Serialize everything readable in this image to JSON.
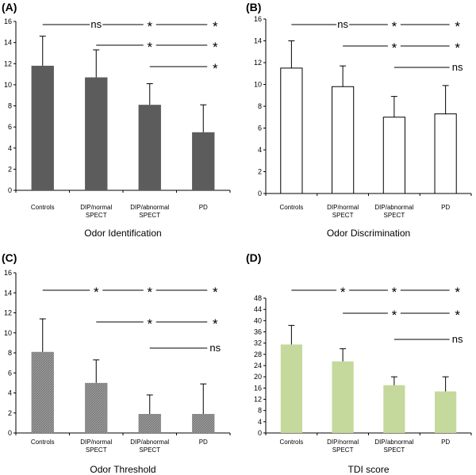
{
  "chart_data": [
    {
      "type": "bar",
      "panel_label": "(A)",
      "title": "Odor Identification",
      "xlabel": "Odor Identification",
      "ylabel": "",
      "ylim": [
        0,
        16
      ],
      "yticks": [
        "0",
        "2",
        "4",
        "6",
        "8",
        "10",
        "12",
        "14",
        "16"
      ],
      "categories": [
        "Controls",
        "DIP/normal SPECT",
        "DIP/abnormal SPECT",
        "PD"
      ],
      "values": [
        11.8,
        10.7,
        8.1,
        5.5
      ],
      "errors": [
        2.8,
        2.6,
        2.0,
        2.6
      ],
      "bar_style": "dark-gray",
      "bar_color": "#5c5c5c",
      "significance": [
        {
          "from": 0,
          "to": [
            1,
            2,
            3
          ],
          "labels": [
            "ns",
            "*",
            "*"
          ]
        },
        {
          "from": 1,
          "to": [
            2,
            3
          ],
          "labels": [
            "*",
            "*"
          ]
        },
        {
          "from": 2,
          "to": [
            3
          ],
          "labels": [
            "*"
          ]
        }
      ]
    },
    {
      "type": "bar",
      "panel_label": "(B)",
      "title": "Odor Discrimination",
      "xlabel": "Odor Discrimination",
      "ylabel": "",
      "ylim": [
        0,
        16
      ],
      "yticks": [
        "0",
        "2",
        "4",
        "6",
        "8",
        "10",
        "12",
        "14",
        "16"
      ],
      "categories": [
        "Controls",
        "DIP/normal SPECT",
        "DIP/abnormal SPECT",
        "PD"
      ],
      "values": [
        11.5,
        9.8,
        7.0,
        7.3
      ],
      "errors": [
        2.5,
        1.9,
        1.9,
        2.6
      ],
      "bar_style": "white",
      "bar_color": "#ffffff",
      "significance": [
        {
          "from": 0,
          "to": [
            1,
            2,
            3
          ],
          "labels": [
            "ns",
            "*",
            "*"
          ]
        },
        {
          "from": 1,
          "to": [
            2,
            3
          ],
          "labels": [
            "*",
            "*"
          ]
        },
        {
          "from": 2,
          "to": [
            3
          ],
          "labels": [
            "ns"
          ]
        }
      ]
    },
    {
      "type": "bar",
      "panel_label": "(C)",
      "title": "Odor Threshold",
      "xlabel": "Odor Threshold",
      "ylabel": "",
      "ylim": [
        0,
        16
      ],
      "yticks": [
        "0",
        "2",
        "4",
        "6",
        "8",
        "10",
        "12",
        "14",
        "16"
      ],
      "categories": [
        "Controls",
        "DIP/normal SPECT",
        "DIP/abnormal SPECT",
        "PD"
      ],
      "values": [
        8.1,
        5.0,
        1.9,
        1.9
      ],
      "errors": [
        3.3,
        2.3,
        1.9,
        3.0
      ],
      "bar_style": "gray-hatched",
      "bar_color": "#8a8a8a",
      "significance": [
        {
          "from": 0,
          "to": [
            1,
            2,
            3
          ],
          "labels": [
            "*",
            "*",
            "*"
          ]
        },
        {
          "from": 1,
          "to": [
            2,
            3
          ],
          "labels": [
            "*",
            "*"
          ]
        },
        {
          "from": 2,
          "to": [
            3
          ],
          "labels": [
            "ns"
          ]
        }
      ]
    },
    {
      "type": "bar",
      "panel_label": "(D)",
      "title": "TDI score",
      "xlabel": "TDI score",
      "ylabel": "",
      "ylim": [
        0,
        48
      ],
      "yticks": [
        "0",
        "4",
        "8",
        "12",
        "16",
        "20",
        "24",
        "28",
        "32",
        "36",
        "40",
        "44",
        "48"
      ],
      "categories": [
        "Controls",
        "DIP/normal SPECT",
        "DIP/abnormal SPECT",
        "PD"
      ],
      "values": [
        31.5,
        25.5,
        17.0,
        14.8
      ],
      "errors": [
        6.8,
        4.5,
        3.0,
        5.2
      ],
      "bar_style": "light-green",
      "bar_color": "#c4d99b",
      "significance": [
        {
          "from": 0,
          "to": [
            1,
            2,
            3
          ],
          "labels": [
            "*",
            "*",
            "*"
          ]
        },
        {
          "from": 1,
          "to": [
            2,
            3
          ],
          "labels": [
            "*",
            "*"
          ]
        },
        {
          "from": 2,
          "to": [
            3
          ],
          "labels": [
            "ns"
          ]
        }
      ]
    }
  ]
}
